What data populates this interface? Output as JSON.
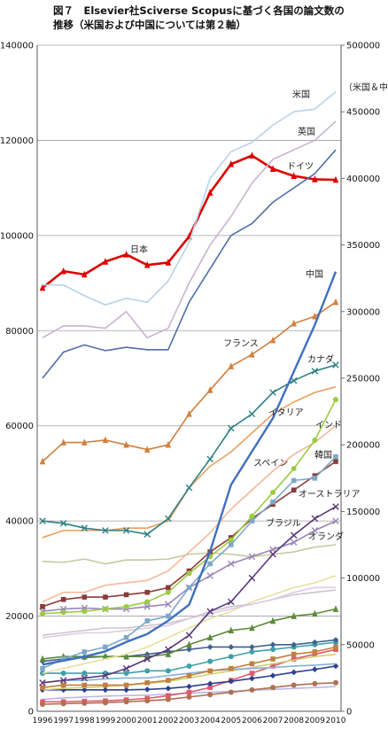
{
  "title": {
    "line1": "図７　Elsevier社Sciverse Scopusに基づく各国の論文数の",
    "line2": "推移（米国および中国については第２軸）"
  },
  "chart_data": {
    "type": "line",
    "x": [
      1996,
      1997,
      1998,
      1999,
      2000,
      2001,
      2002,
      2003,
      2004,
      2005,
      2006,
      2007,
      2008,
      2009,
      2010
    ],
    "ylim": [
      0,
      140000
    ],
    "y_ticks": [
      0,
      20000,
      40000,
      60000,
      80000,
      100000,
      120000,
      140000
    ],
    "y2lim": [
      0,
      500000
    ],
    "y2_ticks": [
      0,
      50000,
      100000,
      150000,
      200000,
      250000,
      300000,
      350000,
      400000,
      450000,
      500000
    ],
    "y2label": "（米国＆中国）",
    "grid": true,
    "series": [
      {
        "name": "米国",
        "axis": "right",
        "color": "#b8d2ea",
        "marker": "none",
        "values": [
          320000,
          320000,
          312000,
          305000,
          310000,
          307000,
          323000,
          352000,
          400000,
          420000,
          427000,
          440000,
          450000,
          452000,
          465000
        ]
      },
      {
        "name": "英国",
        "axis": "left",
        "color": "#c9b3d1",
        "marker": "none",
        "values": [
          78500,
          81000,
          81000,
          80500,
          84000,
          78500,
          80500,
          90000,
          98000,
          104000,
          111000,
          116000,
          118000,
          120000,
          124000
        ]
      },
      {
        "name": "ドイツ",
        "axis": "left",
        "color": "#4f6fa8",
        "marker": "none",
        "values": [
          70000,
          75500,
          77000,
          75800,
          76500,
          76000,
          76000,
          86000,
          93000,
          100000,
          102500,
          107000,
          110000,
          113000,
          118000
        ]
      },
      {
        "name": "日本",
        "axis": "left",
        "color": "#dd0000",
        "marker": "triangle",
        "values": [
          89000,
          92500,
          91800,
          94500,
          96000,
          93800,
          94300,
          99800,
          109000,
          115000,
          116800,
          114000,
          112500,
          111800,
          111700
        ]
      },
      {
        "name": "中国",
        "axis": "right",
        "color": "#3f6fc0",
        "marker": "none",
        "values": [
          35000,
          38000,
          41000,
          45000,
          52000,
          58000,
          68000,
          80000,
          120000,
          170000,
          195000,
          220000,
          255000,
          290000,
          330000
        ]
      },
      {
        "name": "フランス",
        "axis": "left",
        "color": "#d0803e",
        "marker": "triangle",
        "values": [
          52500,
          56500,
          56500,
          57000,
          56000,
          55000,
          56000,
          62500,
          67500,
          72500,
          75000,
          78000,
          81500,
          83000,
          86000
        ]
      },
      {
        "name": "カナダ",
        "axis": "left",
        "color": "#2f8080",
        "marker": "x",
        "values": [
          40000,
          39500,
          38500,
          38000,
          38000,
          37200,
          40500,
          47000,
          53000,
          59500,
          62500,
          67000,
          69500,
          71500,
          72800
        ]
      },
      {
        "name": "イタリア",
        "axis": "left",
        "color": "#e8a060",
        "marker": "none",
        "values": [
          36500,
          38000,
          38000,
          38000,
          38500,
          38500,
          40000,
          47000,
          51500,
          54500,
          58500,
          62500,
          65000,
          67000,
          68200
        ]
      },
      {
        "name": "インド",
        "axis": "left",
        "color": "#9acc44",
        "marker": "circle",
        "values": [
          20500,
          20800,
          21000,
          21500,
          22000,
          23000,
          25000,
          29000,
          32500,
          36000,
          41000,
          46000,
          51000,
          57000,
          65500
        ]
      },
      {
        "name": "スペイン",
        "axis": "left",
        "color": "#f4b89a",
        "marker": "none",
        "values": [
          23000,
          25000,
          25000,
          26500,
          27000,
          27500,
          29500,
          33500,
          37500,
          42500,
          46500,
          50500,
          54000,
          56500,
          60000
        ]
      },
      {
        "name": "韓国",
        "axis": "left",
        "color": "#7ea8c8",
        "marker": "square",
        "values": [
          9000,
          11000,
          12500,
          13500,
          15500,
          19000,
          20000,
          26000,
          31000,
          35000,
          40000,
          44000,
          48500,
          49000,
          53500
        ]
      },
      {
        "name": "オーストラリア",
        "axis": "left",
        "color": "#8a3a3a",
        "marker": "square",
        "values": [
          22000,
          23500,
          24000,
          24000,
          24500,
          25000,
          26000,
          29500,
          33500,
          36500,
          40500,
          43500,
          46500,
          49500,
          52500
        ]
      },
      {
        "name": "ブラジル",
        "axis": "left",
        "color": "#5a3a7a",
        "marker": "x",
        "values": [
          6000,
          6500,
          7000,
          7500,
          9000,
          11000,
          13000,
          16000,
          21000,
          23000,
          28000,
          33000,
          37000,
          40500,
          43000
        ]
      },
      {
        "name": "オランダ",
        "axis": "left",
        "color": "#9a86b8",
        "marker": "x",
        "values": [
          21000,
          21500,
          21700,
          21500,
          21500,
          22000,
          22500,
          26000,
          28500,
          31000,
          32500,
          34000,
          35500,
          38000,
          40000
        ]
      },
      {
        "name": "",
        "axis": "left",
        "color": "#c8c8a0",
        "marker": "none",
        "values": [
          31500,
          31300,
          32000,
          31000,
          31800,
          31800,
          32000,
          33000,
          33300,
          33000,
          32500,
          33000,
          33500,
          34500,
          35000
        ]
      },
      {
        "name": "",
        "axis": "left",
        "color": "#e0c8e8",
        "marker": "none",
        "values": [
          15500,
          16000,
          16500,
          16500,
          17000,
          17500,
          18000,
          19500,
          20500,
          21500,
          22500,
          23500,
          25000,
          26000,
          26000
        ]
      },
      {
        "name": "",
        "axis": "left",
        "color": "#c8c8c8",
        "marker": "none",
        "values": [
          16000,
          16500,
          17000,
          17500,
          17500,
          18000,
          18500,
          19500,
          21000,
          22000,
          22500,
          23500,
          24500,
          25000,
          25500
        ]
      },
      {
        "name": "",
        "axis": "left",
        "color": "#e8e0a0",
        "marker": "none",
        "values": [
          8000,
          9000,
          10000,
          11000,
          12000,
          13500,
          15500,
          17500,
          19500,
          21000,
          23000,
          24500,
          26000,
          27000,
          28500
        ]
      },
      {
        "name": "",
        "axis": "left",
        "color": "#5c8a3a",
        "marker": "triangle",
        "values": [
          11000,
          11500,
          11500,
          11500,
          11500,
          11500,
          12000,
          14000,
          15500,
          17000,
          17500,
          19000,
          20000,
          20500,
          21500
        ]
      },
      {
        "name": "",
        "axis": "left",
        "color": "#3f5f8f",
        "marker": "diamond",
        "values": [
          10500,
          11000,
          11300,
          11500,
          11500,
          12000,
          12500,
          13000,
          13500,
          13500,
          13500,
          14000,
          14000,
          14500,
          15000
        ]
      },
      {
        "name": "",
        "axis": "left",
        "color": "#3fa0a8",
        "marker": "circle",
        "values": [
          8000,
          8000,
          8000,
          8000,
          8000,
          8500,
          8500,
          9500,
          10500,
          11500,
          12500,
          13000,
          13500,
          14000,
          14500
        ]
      },
      {
        "name": "",
        "axis": "left",
        "color": "#c08040",
        "marker": "square",
        "values": [
          5000,
          5500,
          5500,
          5500,
          5500,
          6000,
          6500,
          7500,
          8500,
          9000,
          10000,
          11000,
          12000,
          12500,
          13500
        ]
      },
      {
        "name": "",
        "axis": "left",
        "color": "#88b0d8",
        "marker": "none",
        "values": [
          6000,
          6500,
          6500,
          6800,
          7000,
          7000,
          7500,
          8000,
          8500,
          8800,
          9000,
          9200,
          9500,
          9700,
          10000
        ]
      },
      {
        "name": "",
        "axis": "left",
        "color": "#d0d070",
        "marker": "none",
        "values": [
          4500,
          4800,
          5000,
          5200,
          5500,
          5800,
          6300,
          7000,
          7800,
          8500,
          9200,
          10000,
          10800,
          11500,
          12000
        ]
      },
      {
        "name": "",
        "axis": "left",
        "color": "#2f3f8f",
        "marker": "diamond",
        "values": [
          4500,
          4500,
          4500,
          4500,
          4500,
          4600,
          4800,
          5200,
          5800,
          6300,
          6900,
          7500,
          8200,
          8800,
          9500
        ]
      },
      {
        "name": "",
        "axis": "left",
        "color": "#b07050",
        "marker": "circle",
        "values": [
          1500,
          1600,
          1700,
          1800,
          2000,
          2200,
          2500,
          3000,
          3500,
          4000,
          4500,
          5000,
          5500,
          5800,
          6000
        ]
      },
      {
        "name": "",
        "axis": "left",
        "color": "#e05a6a",
        "marker": "square",
        "values": [
          2000,
          2000,
          2100,
          2200,
          2400,
          2700,
          3300,
          4000,
          5000,
          6500,
          8000,
          9500,
          11000,
          12000,
          13000
        ]
      },
      {
        "name": "",
        "axis": "left",
        "color": "#b8b8e8",
        "marker": "none",
        "values": [
          2500,
          2800,
          3000,
          3200,
          3300,
          3400,
          3600,
          3800,
          4000,
          4200,
          4400,
          4600,
          4800,
          5000,
          5200
        ]
      }
    ]
  }
}
